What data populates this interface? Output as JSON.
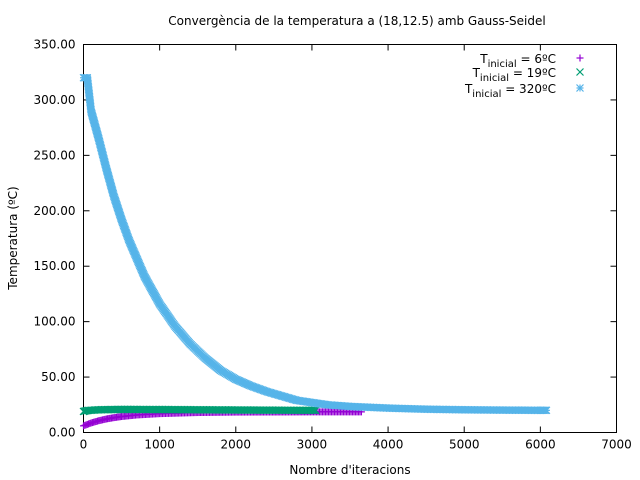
{
  "chart_data": {
    "type": "scatter",
    "title": "Convergència de la temperatura a (18,12.5) amb Gauss-Seidel",
    "xlabel": "Nombre d'iteracions",
    "ylabel": "Temperatura (ºC)",
    "xlim": [
      0,
      7000
    ],
    "ylim": [
      0,
      350
    ],
    "x_ticks": [
      "0",
      "1000",
      "2000",
      "3000",
      "4000",
      "5000",
      "6000",
      "7000"
    ],
    "y_ticks": [
      "0.00",
      "50.00",
      "100.00",
      "150.00",
      "200.00",
      "250.00",
      "300.00",
      "350.00"
    ],
    "grid": false,
    "legend_position": "top-right",
    "series": [
      {
        "name": {
          "base": "T",
          "sub": "inicial",
          "rest": " = 6ºC"
        },
        "marker": "+",
        "color": "#9400d3",
        "points": [
          [
            0,
            6
          ],
          [
            100,
            8.6
          ],
          [
            200,
            10.6
          ],
          [
            300,
            12.2
          ],
          [
            400,
            13.4
          ],
          [
            500,
            14.4
          ],
          [
            700,
            15.8
          ],
          [
            1000,
            17.0
          ],
          [
            1500,
            18.0
          ],
          [
            2000,
            18.4
          ],
          [
            2500,
            18.5
          ],
          [
            3000,
            18.6
          ],
          [
            3650,
            18.6
          ]
        ]
      },
      {
        "name": {
          "base": "T",
          "sub": "inicial",
          "rest": " = 19ºC"
        },
        "marker": "×",
        "color": "#009e73",
        "points": [
          [
            0,
            19.0
          ],
          [
            50,
            19.8
          ],
          [
            200,
            20.5
          ],
          [
            500,
            20.8
          ],
          [
            1000,
            20.7
          ],
          [
            1500,
            20.5
          ],
          [
            2000,
            20.3
          ],
          [
            2500,
            20.1
          ],
          [
            3050,
            20.0
          ]
        ]
      },
      {
        "name": {
          "base": "T",
          "sub": "inicial",
          "rest": " = 320ºC"
        },
        "marker": "*",
        "color": "#56b4e9",
        "points": [
          [
            0,
            320
          ],
          [
            50,
            320
          ],
          [
            100,
            290
          ],
          [
            200,
            265
          ],
          [
            300,
            238
          ],
          [
            400,
            213
          ],
          [
            500,
            192
          ],
          [
            600,
            173
          ],
          [
            800,
            141
          ],
          [
            1000,
            116
          ],
          [
            1200,
            96
          ],
          [
            1400,
            80
          ],
          [
            1600,
            67
          ],
          [
            1800,
            56
          ],
          [
            2000,
            48
          ],
          [
            2200,
            42
          ],
          [
            2400,
            37
          ],
          [
            2600,
            33
          ],
          [
            2800,
            29
          ],
          [
            3000,
            27
          ],
          [
            3200,
            25
          ],
          [
            3500,
            23.5
          ],
          [
            4000,
            22
          ],
          [
            4500,
            21
          ],
          [
            5000,
            20.5
          ],
          [
            5500,
            20.2
          ],
          [
            6000,
            20.0
          ],
          [
            6080,
            20.0
          ]
        ]
      }
    ]
  }
}
